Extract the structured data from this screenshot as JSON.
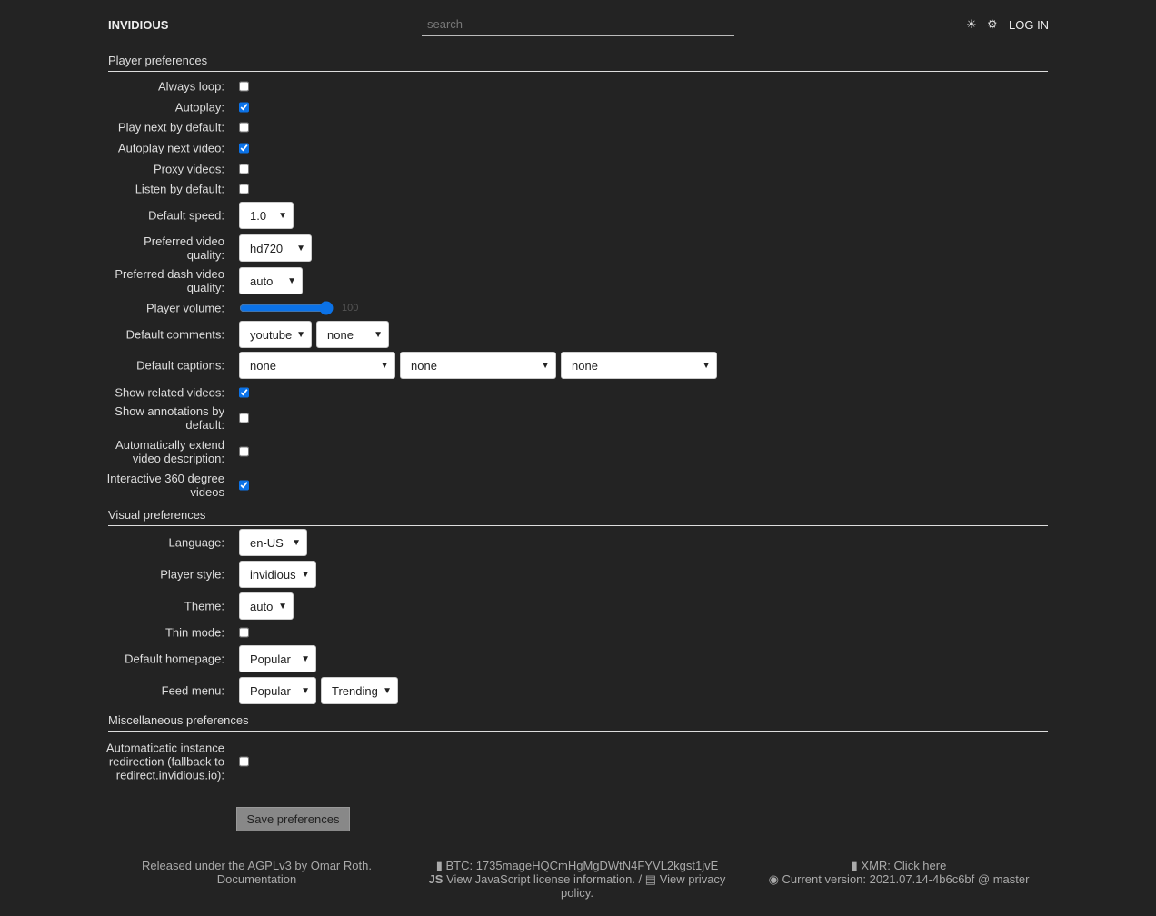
{
  "header": {
    "brand": "INVIDIOUS",
    "search_placeholder": "search",
    "theme_icon": "sun-icon",
    "prefs_icon": "gear-icon",
    "login": "LOG IN"
  },
  "sections": [
    {
      "title": "Player preferences",
      "rows": [
        {
          "label": "Always loop:",
          "type": "checkbox",
          "checked": false
        },
        {
          "label": "Autoplay:",
          "type": "checkbox",
          "checked": true
        },
        {
          "label": "Play next by default:",
          "type": "checkbox",
          "checked": false
        },
        {
          "label": "Autoplay next video:",
          "type": "checkbox",
          "checked": true
        },
        {
          "label": "Proxy videos:",
          "type": "checkbox",
          "checked": false
        },
        {
          "label": "Listen by default:",
          "type": "checkbox",
          "checked": false
        },
        {
          "label": "Default speed:",
          "type": "select",
          "values": [
            "1.0"
          ]
        },
        {
          "label": "Preferred video quality:",
          "type": "select",
          "values": [
            "hd720"
          ]
        },
        {
          "label": "Preferred dash video quality:",
          "type": "select",
          "values": [
            "auto"
          ]
        },
        {
          "label": "Player volume:",
          "type": "range",
          "value": 100,
          "value_label": "100"
        },
        {
          "label": "Default comments:",
          "type": "select",
          "values": [
            "youtube",
            "none"
          ]
        },
        {
          "label": "Default captions:",
          "type": "select",
          "values": [
            "none",
            "none",
            "none"
          ]
        },
        {
          "label": "Show related videos:",
          "type": "checkbox",
          "checked": true
        },
        {
          "label": "Show annotations by default:",
          "type": "checkbox",
          "checked": false
        },
        {
          "label": "Automatically extend video description:",
          "type": "checkbox",
          "checked": false
        },
        {
          "label": "Interactive 360 degree videos",
          "type": "checkbox",
          "checked": true
        }
      ]
    },
    {
      "title": "Visual preferences",
      "rows": [
        {
          "label": "Language:",
          "type": "select",
          "values": [
            "en-US"
          ]
        },
        {
          "label": "Player style:",
          "type": "select",
          "values": [
            "invidious"
          ]
        },
        {
          "label": "Theme:",
          "type": "select",
          "values": [
            "auto"
          ]
        },
        {
          "label": "Thin mode:",
          "type": "checkbox",
          "checked": false
        },
        {
          "label": "Default homepage:",
          "type": "select",
          "values": [
            "Popular"
          ]
        },
        {
          "label": "Feed menu:",
          "type": "select",
          "values": [
            "Popular",
            "Trending"
          ]
        }
      ]
    },
    {
      "title": "Miscellaneous preferences",
      "rows": [
        {
          "label": "Automaticatic instance redirection (fallback to redirect.invidious.io):",
          "type": "checkbox",
          "checked": false
        }
      ]
    }
  ],
  "save_label": "Save preferences",
  "footer": {
    "left": [
      "Released under the AGPLv3 by Omar Roth.",
      "Documentation"
    ],
    "btc": "BTC: 1735mageHQCmHgMgDWtN4FYVL2kgst1jvE",
    "js_license": "View JavaScript license information.",
    "privacy": "View privacy policy.",
    "xmr": "XMR: Click here",
    "version": "Current version: 2021.07.14-4b6c6bf @ master"
  }
}
